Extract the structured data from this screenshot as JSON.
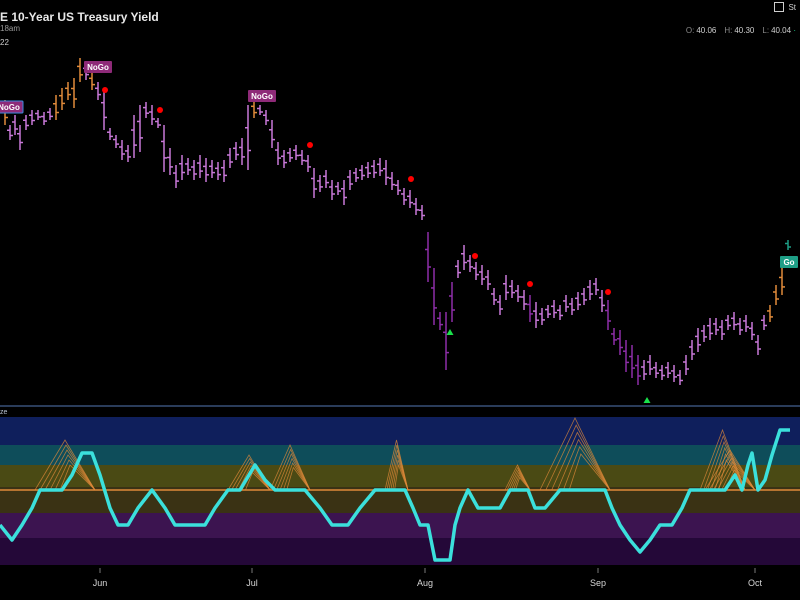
{
  "header": {
    "title": "E 10-Year US Treasury Yield",
    "subtitle": "18am",
    "subline": "22",
    "brand": "St"
  },
  "ohlc": {
    "o_label": "O:",
    "o": "40.06",
    "h_label": "H:",
    "h": "40.30",
    "l_label": "L:",
    "l": "40.04"
  },
  "oscillator_label": "ze",
  "colors": {
    "background": "#000000",
    "nogo_bar": "#c878d8",
    "nogo_strong_bar": "#8e2ea8",
    "transition_bar": "#e08a3a",
    "nogo_flag": "#8e2a78",
    "go_flag": "#1e9e86",
    "oscillator_line": "#3be0dc",
    "zero_line": "#e08a3a",
    "red_dot": "#ff0000",
    "green_triangle": "#19e04a"
  },
  "chart_data": {
    "type": "bar",
    "title": "E 10-Year US Treasury Yield",
    "x_tick_labels": [
      "Jun",
      "Jul",
      "Aug",
      "Sep",
      "Oct"
    ],
    "flags": [
      {
        "text": "NoGo",
        "kind": "nogo"
      },
      {
        "text": "NoGo",
        "kind": "nogo"
      },
      {
        "text": "NoGo",
        "kind": "nogo"
      },
      {
        "text": "Go",
        "kind": "go"
      }
    ]
  }
}
